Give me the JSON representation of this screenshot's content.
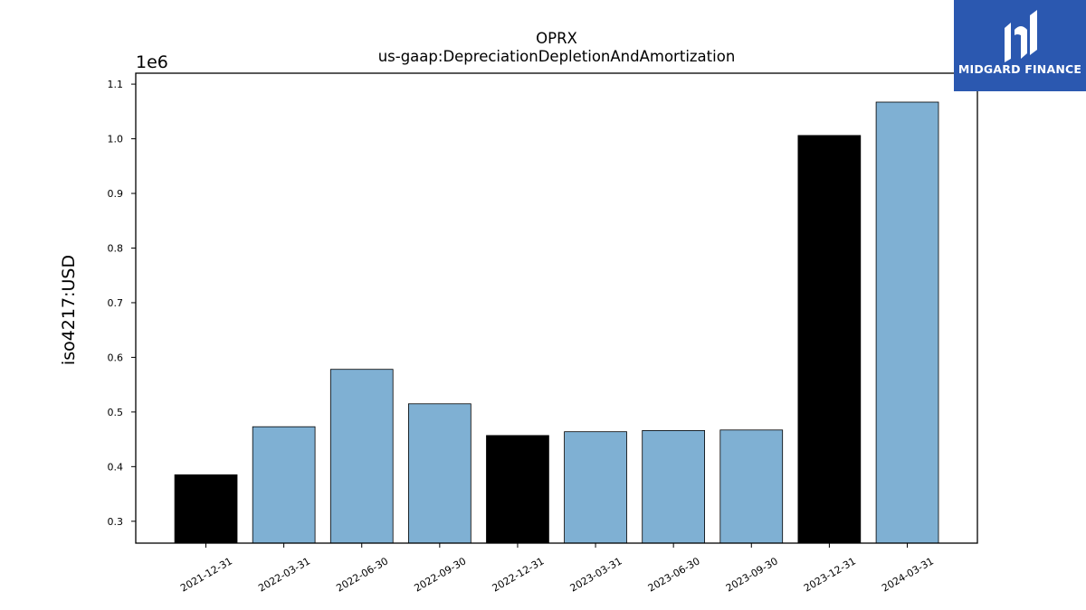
{
  "chart_data": {
    "type": "bar",
    "title": "OPRX",
    "subtitle": "us-gaap:DepreciationDepletionAndAmortization",
    "ylabel": "iso4217:USD",
    "xlabel": "",
    "offset_label": "1e6",
    "categories": [
      "2021-12-31",
      "2022-03-31",
      "2022-06-30",
      "2022-09-30",
      "2022-12-31",
      "2023-03-31",
      "2023-06-30",
      "2023-09-30",
      "2023-12-31",
      "2024-03-31"
    ],
    "values": [
      385000,
      473000,
      578000,
      515000,
      457000,
      464000,
      466000,
      467000,
      1006000,
      1067000
    ],
    "bar_colors": [
      "#000000",
      "#7fb0d3",
      "#7fb0d3",
      "#7fb0d3",
      "#000000",
      "#7fb0d3",
      "#7fb0d3",
      "#7fb0d3",
      "#000000",
      "#7fb0d3"
    ],
    "ylim": [
      260000,
      1120000
    ],
    "yticks": [
      300000,
      400000,
      500000,
      600000,
      700000,
      800000,
      900000,
      1000000,
      1100000
    ],
    "ytick_labels": [
      "0.3",
      "0.4",
      "0.5",
      "0.6",
      "0.7",
      "0.8",
      "0.9",
      "1.0",
      "1.1"
    ],
    "grid": false,
    "legend": "none"
  },
  "logo": {
    "text": "MIDGARD FINANCE",
    "icon": "midgard-logo-icon",
    "background": "#2b58b0"
  }
}
